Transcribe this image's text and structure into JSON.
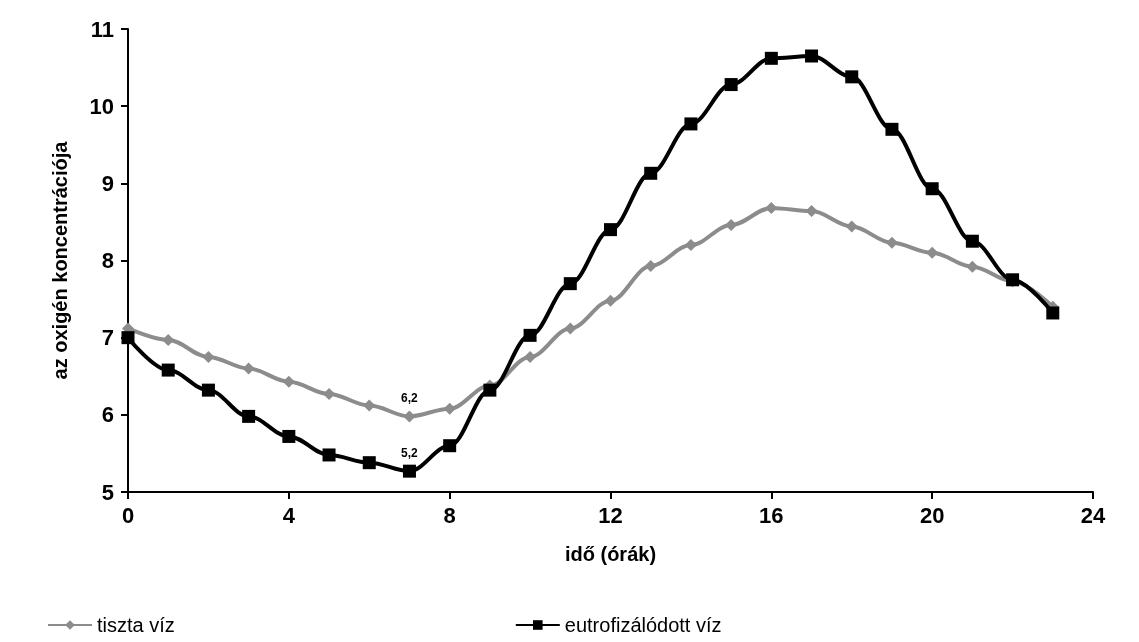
{
  "chart_data": {
    "type": "line",
    "xlabel": "idő (órák)",
    "ylabel": "az oxigén koncentrációja",
    "x": [
      0,
      1,
      2,
      3,
      4,
      5,
      6,
      7,
      8,
      9,
      10,
      11,
      12,
      13,
      14,
      15,
      16,
      17,
      18,
      19,
      20,
      21,
      22,
      23
    ],
    "series": [
      {
        "name": "tiszta víz",
        "color": "#8c8c8c",
        "marker": "diamond",
        "values": [
          7.12,
          6.97,
          6.75,
          6.6,
          6.43,
          6.27,
          6.12,
          5.98,
          6.08,
          6.38,
          6.75,
          7.12,
          7.48,
          7.93,
          8.2,
          8.46,
          8.68,
          8.64,
          8.44,
          8.23,
          8.1,
          7.92,
          7.73,
          7.4
        ]
      },
      {
        "name": "eutrofizálódott víz",
        "color": "#000000",
        "marker": "square",
        "values": [
          7.0,
          6.58,
          6.32,
          5.98,
          5.72,
          5.48,
          5.38,
          5.27,
          5.6,
          6.32,
          7.03,
          7.7,
          8.4,
          9.13,
          9.77,
          10.28,
          10.62,
          10.65,
          10.38,
          9.7,
          8.93,
          8.25,
          7.75,
          7.32
        ]
      }
    ],
    "xlim": [
      0,
      24
    ],
    "xticks": [
      0,
      4,
      8,
      12,
      16,
      20,
      24
    ],
    "ylim": [
      5,
      11
    ],
    "yticks": [
      5,
      6,
      7,
      8,
      9,
      10,
      11
    ],
    "annotations": [
      {
        "text": "6,2",
        "x": 7,
        "y": 5.98
      },
      {
        "text": "5,2",
        "x": 7,
        "y": 5.27
      }
    ],
    "grid": false,
    "legend": "bottom",
    "line_style": "solid"
  }
}
